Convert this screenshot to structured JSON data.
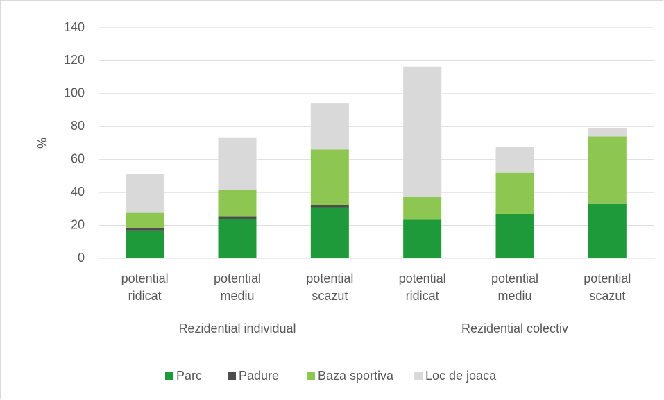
{
  "chart_data": {
    "type": "stacked_bar",
    "ylabel": "%",
    "groups": [
      {
        "name": "Rezidential individual",
        "categories": [
          "potential ridicat",
          "potential mediu",
          "potential scazut"
        ]
      },
      {
        "name": "Rezidential colectiv",
        "categories": [
          "potential ridicat",
          "potential mediu",
          "potential scazut"
        ]
      }
    ],
    "series": [
      {
        "name": "Parc",
        "color": "#1e9a3a",
        "values": [
          17,
          24,
          31,
          23.5,
          27,
          33
        ]
      },
      {
        "name": "Padure",
        "color": "#4d4d4d",
        "values": [
          1.5,
          1.5,
          1.5,
          0,
          0,
          0
        ]
      },
      {
        "name": "Baza sportiva",
        "color": "#8dc650",
        "values": [
          9.5,
          16,
          33.5,
          14,
          25,
          41
        ]
      },
      {
        "name": "Loc de joaca",
        "color": "#d9d9d9",
        "values": [
          23,
          32,
          28,
          79,
          15.5,
          5
        ]
      }
    ],
    "ylim": [
      0,
      140
    ],
    "yticks": [
      0,
      20,
      40,
      60,
      80,
      100,
      120,
      140
    ],
    "grid": true,
    "legend": "bottom"
  }
}
